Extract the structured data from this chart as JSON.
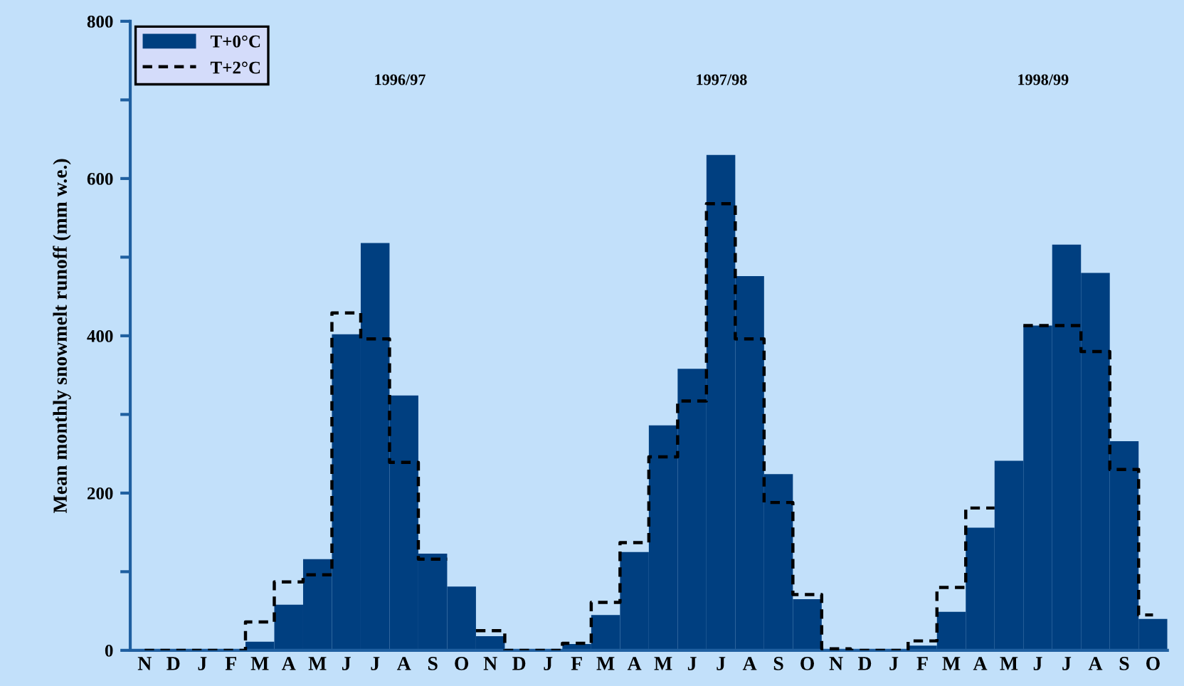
{
  "chart_data": {
    "type": "bar",
    "ylabel": "Mean monthly snowmelt runoff (mm w.e.)",
    "categories": [
      "N",
      "D",
      "J",
      "F",
      "M",
      "A",
      "M",
      "J",
      "J",
      "A",
      "S",
      "O",
      "N",
      "D",
      "J",
      "F",
      "M",
      "A",
      "M",
      "J",
      "J",
      "A",
      "S",
      "O",
      "N",
      "D",
      "J",
      "F",
      "M",
      "A",
      "M",
      "J",
      "J",
      "A",
      "S",
      "O"
    ],
    "series": [
      {
        "name": "T+0°C",
        "color": "#003f80",
        "values": [
          0,
          0,
          0,
          0,
          11,
          58,
          116,
          402,
          518,
          324,
          123,
          81,
          18,
          0,
          0,
          8,
          45,
          125,
          286,
          358,
          630,
          476,
          224,
          65,
          null,
          0,
          0,
          6,
          49,
          156,
          241,
          413,
          516,
          480,
          266,
          40
        ]
      },
      {
        "name": "T+2°C",
        "type": "step",
        "color": "#000000",
        "line_style": "dashed",
        "values": [
          0,
          0,
          0,
          0,
          36,
          87,
          96,
          429,
          396,
          239,
          116,
          null,
          25,
          0,
          0,
          9,
          61,
          137,
          246,
          317,
          568,
          396,
          188,
          71,
          2,
          0,
          0,
          12,
          80,
          181,
          null,
          413,
          413,
          380,
          230,
          45
        ]
      }
    ],
    "ylim": [
      0,
      800
    ],
    "yticks": [
      0,
      {
        "value": 100,
        "label": null
      },
      200,
      {
        "value": 300,
        "label": null
      },
      400,
      {
        "value": 500,
        "label": null
      },
      600,
      {
        "value": 700,
        "label": null
      },
      800
    ],
    "annotations": [
      "1996/97",
      "1997/98",
      "1998/99"
    ],
    "legend": "top left",
    "grid": false
  }
}
